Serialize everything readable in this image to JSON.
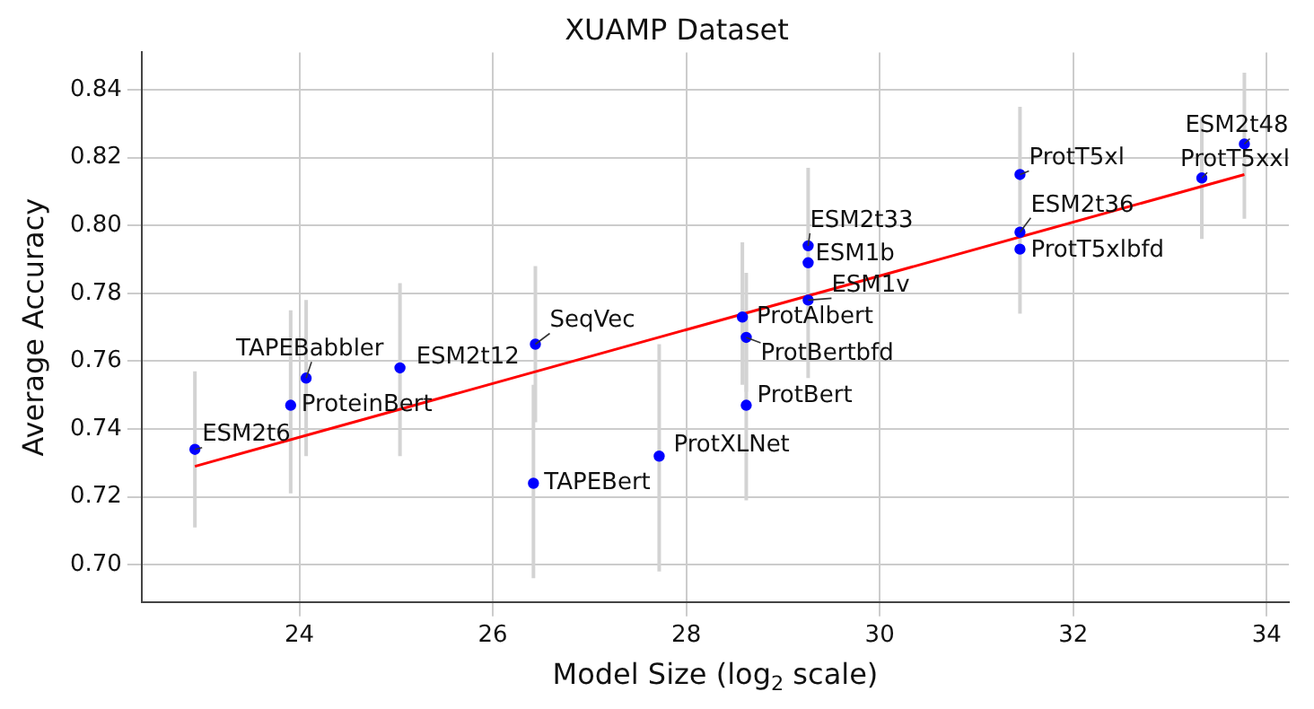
{
  "chart_data": {
    "type": "scatter",
    "title": "XUAMP Dataset",
    "xlabel": "Model Size (log$_{2}$ scale)",
    "ylabel": "Average Accuracy",
    "xlim": [
      22.37,
      34.23
    ],
    "xticks": [
      24,
      26,
      28,
      30,
      32,
      34
    ],
    "ylim": [
      0.689,
      0.851
    ],
    "yticks": [
      {
        "value": 0.7,
        "label": "0.70"
      },
      0.72,
      0.74,
      0.76,
      0.78,
      {
        "value": 0.8,
        "label": "0.80"
      },
      0.82,
      0.84
    ],
    "grid": true,
    "series": [
      {
        "marker": "circle",
        "color": "#0000ff",
        "x": [
          22.92,
          23.91,
          24.07,
          25.04,
          26.44,
          26.42,
          27.72,
          28.58,
          28.62,
          28.62,
          29.26,
          29.26,
          29.26,
          31.45,
          31.45,
          31.45,
          33.33,
          33.77
        ],
        "values": [
          0.734,
          0.747,
          0.755,
          0.758,
          0.765,
          0.724,
          0.732,
          0.773,
          0.767,
          0.747,
          0.794,
          0.789,
          0.778,
          0.815,
          0.798,
          0.793,
          0.814,
          0.824
        ],
        "value_labels": [
          "ESM2t6",
          "ProteinBert",
          "TAPEBabbler",
          "ESM2t12",
          "SeqVec",
          "TAPEBert",
          "ProtXLNet",
          "ProtAlbert",
          "ProtBertbfd",
          "ProtBert",
          "ESM2t33",
          "ESM1b",
          "ESM1v",
          "ProtT5xl",
          "ESM2t36",
          "ProtT5xlbfd",
          "ProtT5xxl",
          "ESM2t48"
        ],
        "errors": [
          [
            0.711,
            0.757
          ],
          [
            0.721,
            0.775
          ],
          [
            0.732,
            0.778
          ],
          [
            0.732,
            0.783
          ],
          [
            0.742,
            0.788
          ],
          [
            0.696,
            0.753
          ],
          [
            0.698,
            0.765
          ],
          [
            0.753,
            0.795
          ],
          [
            0.751,
            0.786
          ],
          [
            0.719,
            0.775
          ],
          [
            0.755,
            0.817
          ],
          null,
          null,
          [
            0.774,
            0.835
          ],
          null,
          null,
          [
            0.796,
            0.832
          ],
          [
            0.802,
            0.845
          ]
        ]
      },
      {
        "type": "line",
        "color": "#ff0000",
        "x": [
          22.92,
          33.77
        ],
        "values": [
          0.729,
          0.815
        ]
      }
    ]
  }
}
